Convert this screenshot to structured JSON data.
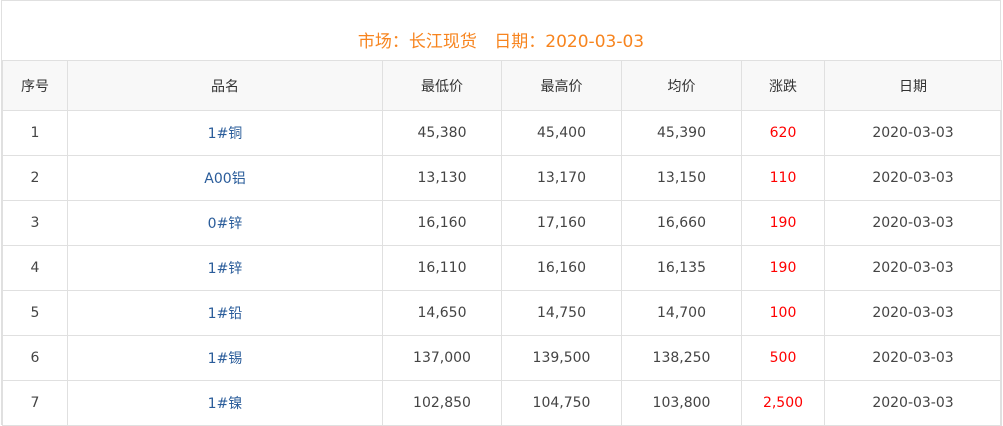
{
  "header": {
    "market_label": "市场：长江现货",
    "date_label": "日期：2020-03-03"
  },
  "table": {
    "columns": [
      "序号",
      "品名",
      "最低价",
      "最高价",
      "均价",
      "涨跌",
      "日期"
    ],
    "rows": [
      [
        "1",
        "1#铜",
        "45,380",
        "45,400",
        "45,390",
        "620",
        "2020-03-03"
      ],
      [
        "2",
        "A00铝",
        "13,130",
        "13,170",
        "13,150",
        "110",
        "2020-03-03"
      ],
      [
        "3",
        "0#锌",
        "16,160",
        "17,160",
        "16,660",
        "190",
        "2020-03-03"
      ],
      [
        "4",
        "1#锌",
        "16,110",
        "16,160",
        "16,135",
        "190",
        "2020-03-03"
      ],
      [
        "5",
        "1#铅",
        "14,650",
        "14,750",
        "14,700",
        "100",
        "2020-03-03"
      ],
      [
        "6",
        "1#锡",
        "137,000",
        "139,500",
        "138,250",
        "500",
        "2020-03-03"
      ],
      [
        "7",
        "1#镍",
        "102,850",
        "104,750",
        "103,800",
        "2,500",
        "2020-03-03"
      ]
    ]
  },
  "colors": {
    "title": "#f7841e",
    "change": "#ff0000",
    "name": "#2a5c9a"
  }
}
